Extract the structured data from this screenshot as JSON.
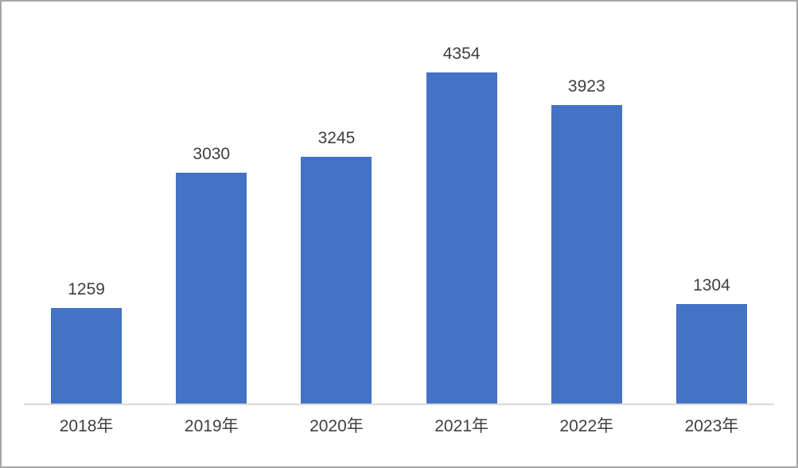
{
  "page": {
    "background": "#ffffff",
    "border_color": "#a6a6a6"
  },
  "chart_data": {
    "type": "bar",
    "title": "",
    "xlabel": "",
    "ylabel": "",
    "categories": [
      "2018年",
      "2019年",
      "2020年",
      "2021年",
      "2022年",
      "2023年"
    ],
    "values": [
      1259,
      3030,
      3245,
      4354,
      3923,
      1304
    ],
    "data_labels": [
      "1259",
      "3030",
      "3245",
      "4354",
      "3923",
      "1304"
    ],
    "ylim": [
      0,
      4800
    ],
    "grid": false,
    "legend": false,
    "bar_color": "#4472C4",
    "axis_line_color": "#dadada",
    "label_color": "#3f3f3f"
  }
}
